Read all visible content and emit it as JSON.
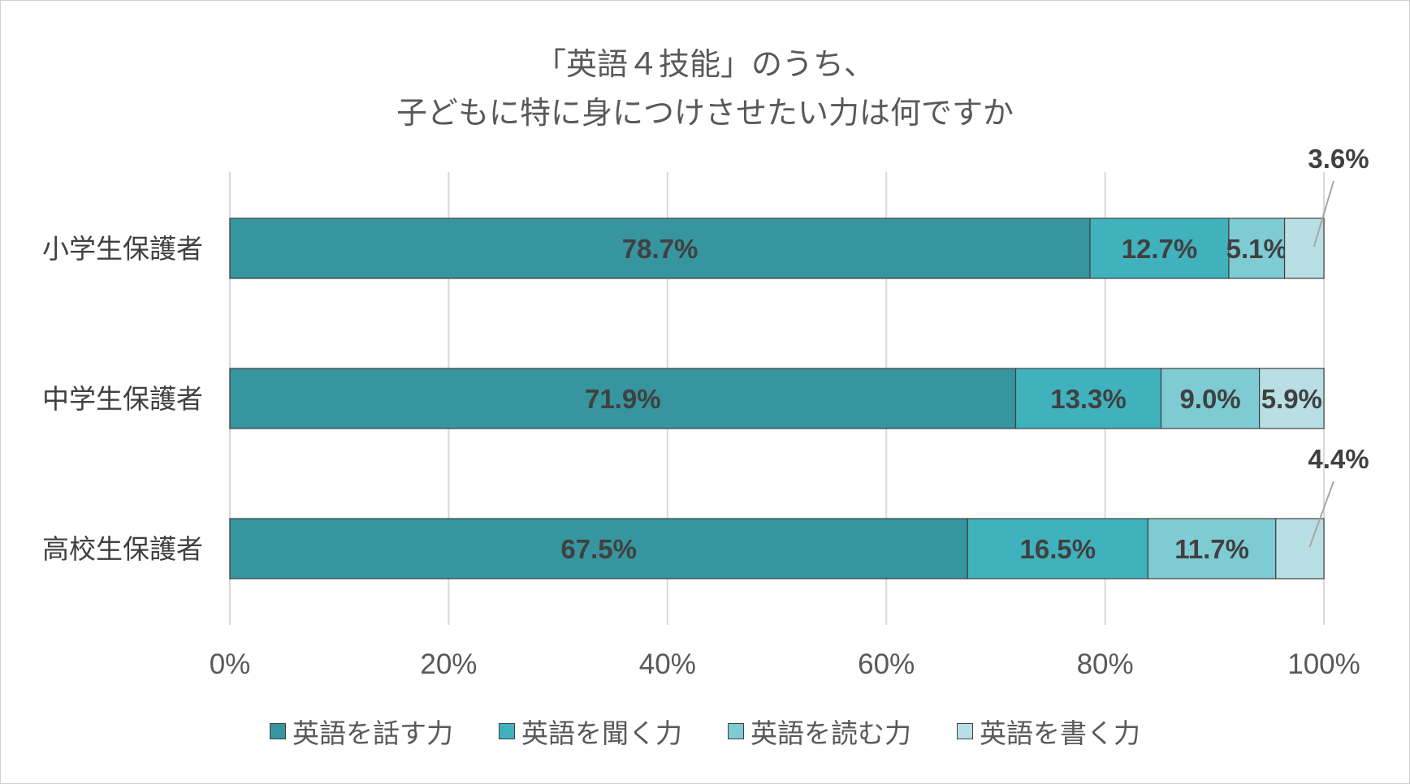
{
  "chart_data": {
    "type": "bar",
    "orientation": "horizontal",
    "stacked": "percent",
    "title": [
      "「英語４技能」のうち、",
      "子どもに特に身につけさせたい力は何ですか"
    ],
    "categories": [
      "小学生保護者",
      "中学生保護者",
      "高校生保護者"
    ],
    "series": [
      {
        "name": "英語を話す力",
        "values": [
          78.7,
          71.9,
          67.5
        ],
        "labels": [
          "78.7%",
          "71.9%",
          "67.5%"
        ],
        "color": "#36959e"
      },
      {
        "name": "英語を聞く力",
        "values": [
          12.7,
          13.3,
          16.5
        ],
        "labels": [
          "12.7%",
          "13.3%",
          "16.5%"
        ],
        "color": "#40b2bd"
      },
      {
        "name": "英語を読む力",
        "values": [
          5.1,
          9.0,
          11.7
        ],
        "labels": [
          "5.1%",
          "9.0%",
          "11.7%"
        ],
        "color": "#7ecbd3"
      },
      {
        "name": "英語を書く力",
        "values": [
          3.6,
          5.9,
          4.4
        ],
        "labels": [
          "3.6%",
          "5.9%",
          "4.4%"
        ],
        "color": "#b8dfe3"
      }
    ],
    "xlim": [
      0,
      100
    ],
    "xticks": [
      "0%",
      "20%",
      "40%",
      "60%",
      "80%",
      "100%"
    ],
    "grid": true,
    "legend_position": "bottom"
  }
}
